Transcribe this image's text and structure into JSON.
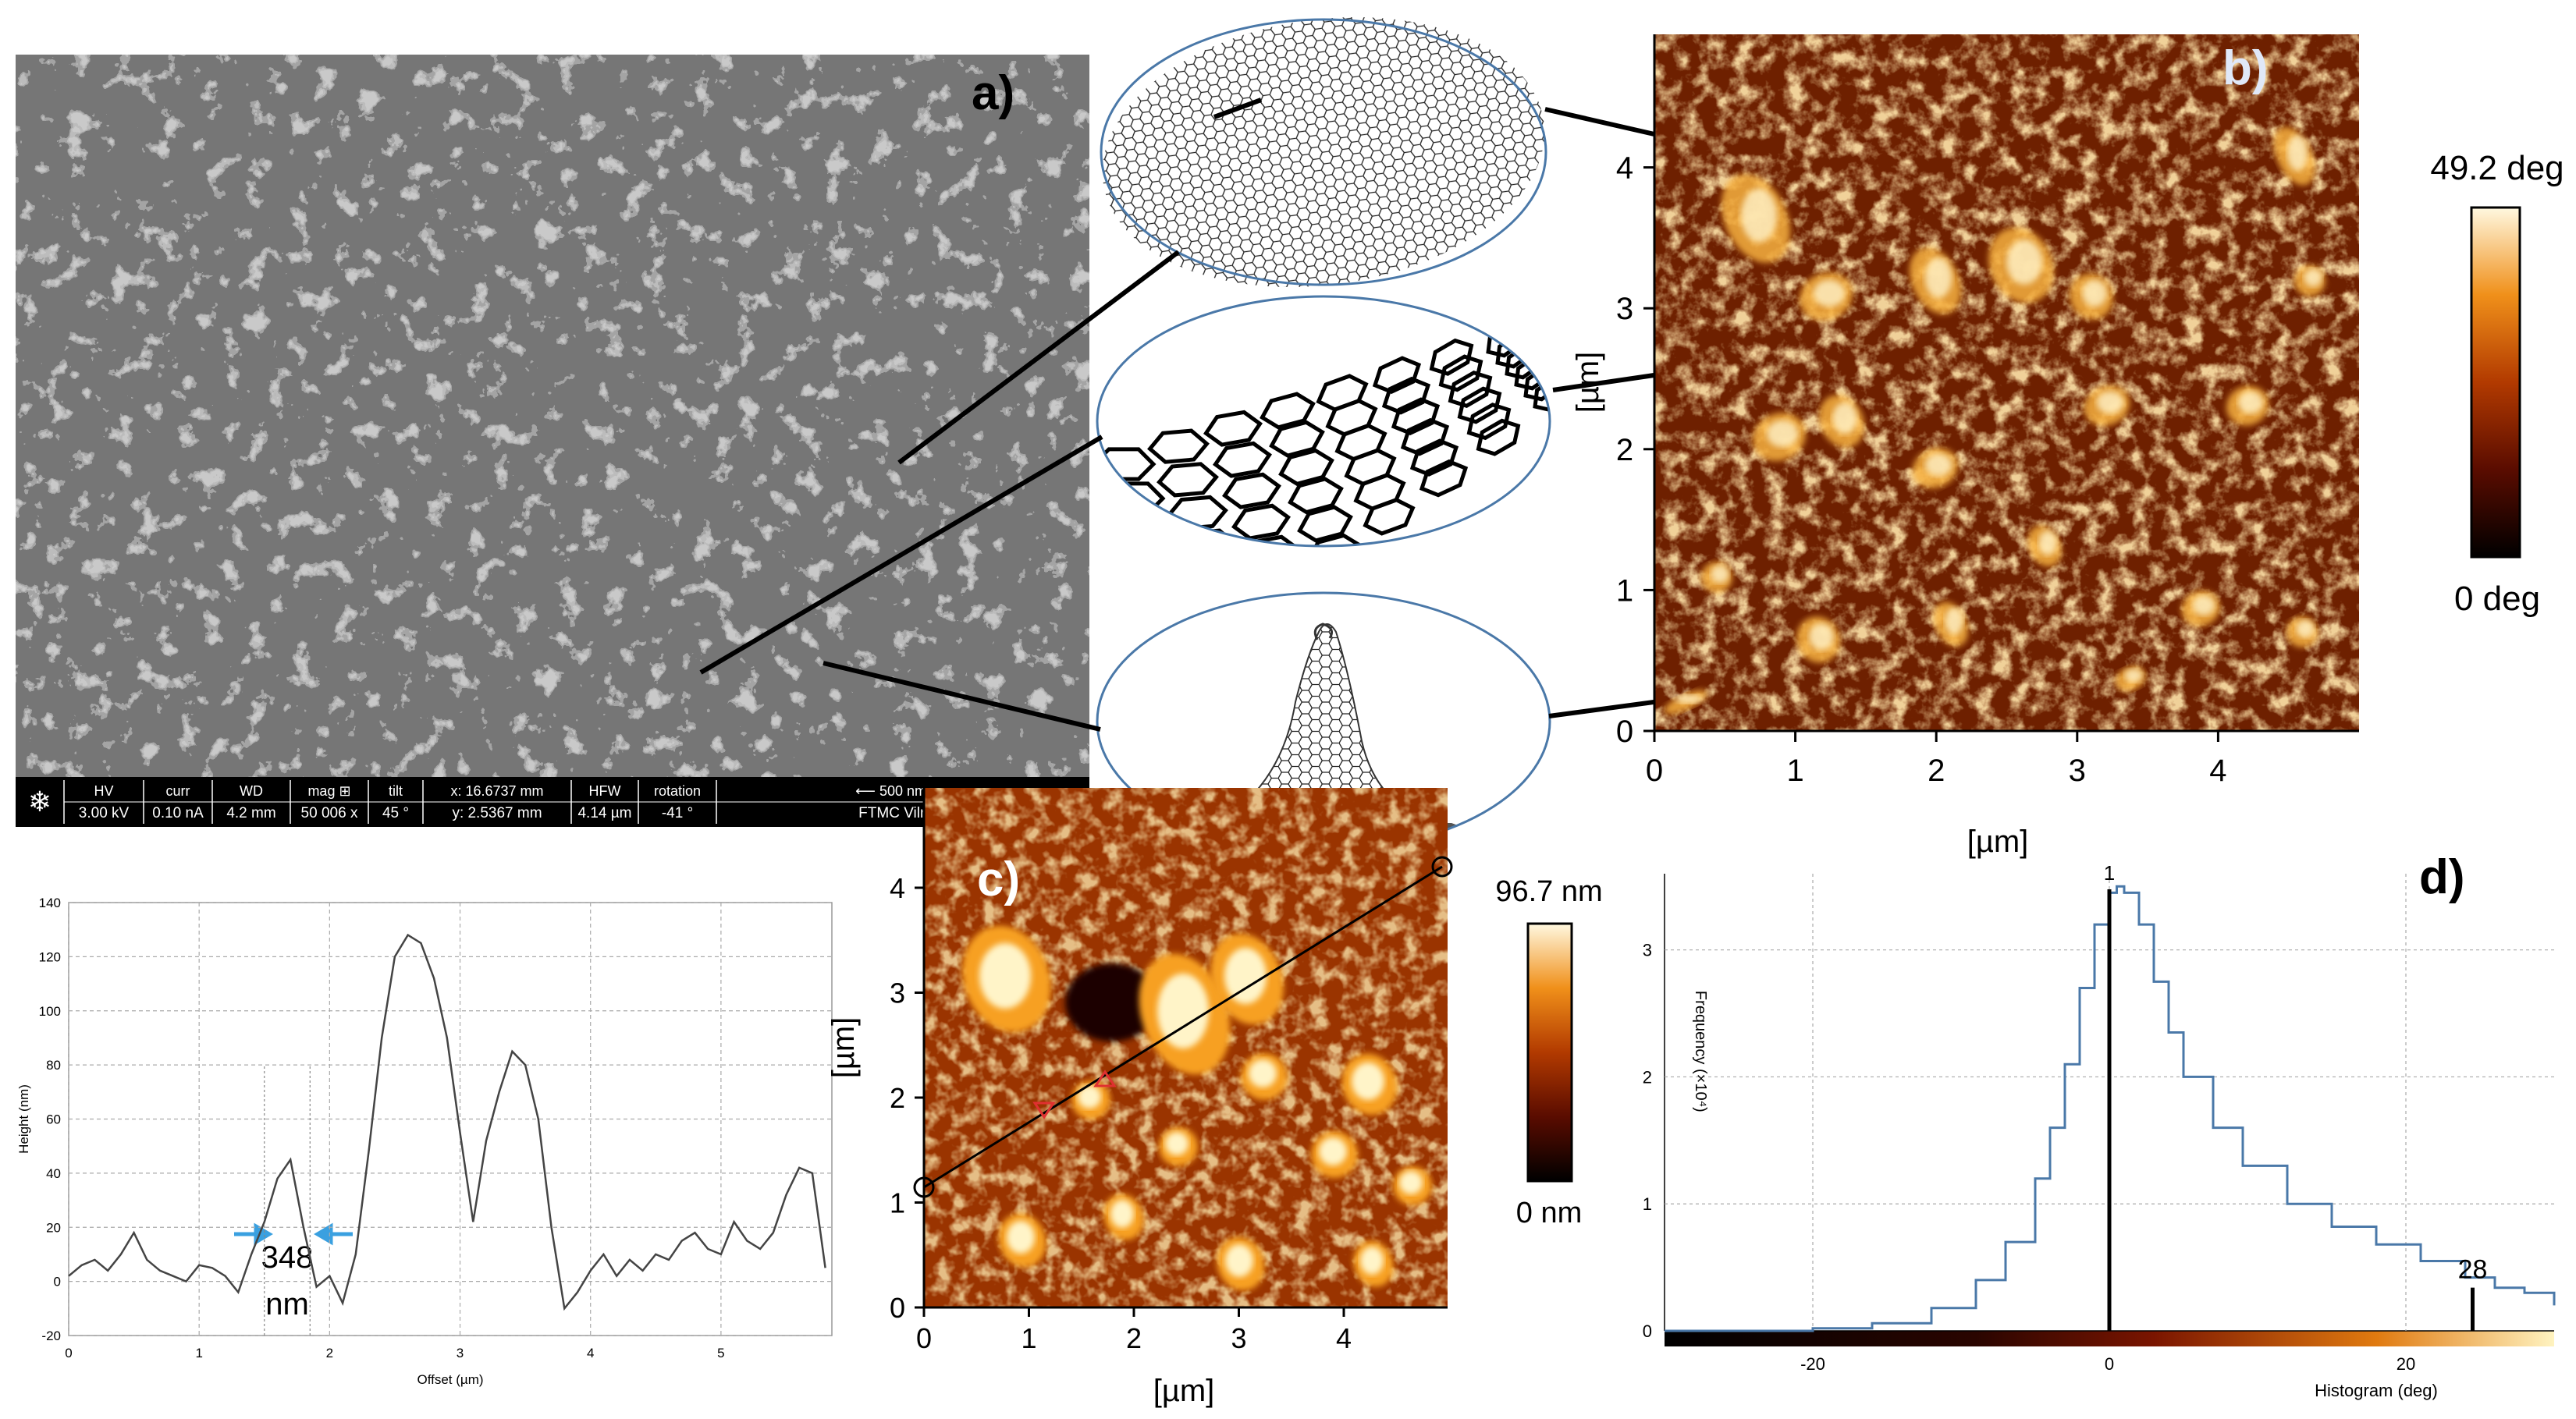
{
  "panels": {
    "a": "a)",
    "b": "b)",
    "c": "c)",
    "d": "d)"
  },
  "sem_databar": {
    "cells": [
      {
        "header": "HV",
        "value": "3.00 kV"
      },
      {
        "header": "curr",
        "value": "0.10 nA"
      },
      {
        "header": "WD",
        "value": "4.2 mm"
      },
      {
        "header": "mag ⊞",
        "value": "50 006 x"
      },
      {
        "header": "tilt",
        "value": "45 °"
      },
      {
        "header": "x: 16.6737 mm",
        "value": "y: 2.5367 mm"
      },
      {
        "header": "HFW",
        "value": "4.14 µm"
      },
      {
        "header": "rotation",
        "value": "-41 °"
      },
      {
        "header": "⟵ 500 nm ⟶",
        "value": "FTMC Vilnius"
      }
    ]
  },
  "afm_phase": {
    "axis_label": "[µm]",
    "ticks": [
      "0",
      "1",
      "2",
      "3",
      "4"
    ],
    "colorbar_max": "49.2 deg",
    "colorbar_min": "0 deg"
  },
  "afm_height": {
    "axis_label": "[µm]",
    "ticks": [
      "0",
      "1",
      "2",
      "3",
      "4"
    ],
    "colorbar_max": "96.7 nm",
    "colorbar_min": "0 nm"
  },
  "colors": {
    "afm_dark": "#2a0800",
    "afm_mid": "#b84a08",
    "afm_bright": "#ffe8a0",
    "histogram_line": "#4a78a8",
    "marker_arrow": "#3aa0e0",
    "cursor_red": "#e03030"
  },
  "chart_data": [
    {
      "type": "line",
      "xlabel": "Offset (µm)",
      "ylabel": "Height (nm)",
      "xlim": [
        0,
        5.85
      ],
      "ylim": [
        -20,
        140
      ],
      "xticks": [
        "0",
        "1",
        "2",
        "3",
        "4",
        "5"
      ],
      "yticks": [
        "-20",
        "0",
        "20",
        "40",
        "60",
        "80",
        "100",
        "120",
        "140"
      ],
      "grid": true,
      "annotation_value": "348",
      "annotation_unit": "nm",
      "x": [
        0,
        0.1,
        0.2,
        0.3,
        0.4,
        0.5,
        0.6,
        0.7,
        0.8,
        0.9,
        1.0,
        1.1,
        1.2,
        1.3,
        1.4,
        1.5,
        1.6,
        1.7,
        1.8,
        1.9,
        2.0,
        2.1,
        2.2,
        2.3,
        2.4,
        2.5,
        2.6,
        2.7,
        2.8,
        2.9,
        3.0,
        3.1,
        3.2,
        3.3,
        3.4,
        3.5,
        3.6,
        3.7,
        3.8,
        3.9,
        4.0,
        4.1,
        4.2,
        4.3,
        4.4,
        4.5,
        4.6,
        4.7,
        4.8,
        4.9,
        5.0,
        5.1,
        5.2,
        5.3,
        5.4,
        5.5,
        5.6,
        5.7,
        5.8
      ],
      "y": [
        2,
        6,
        8,
        4,
        10,
        18,
        8,
        4,
        2,
        0,
        6,
        5,
        2,
        -4,
        10,
        22,
        38,
        45,
        20,
        -2,
        2,
        -8,
        10,
        48,
        90,
        120,
        128,
        125,
        112,
        90,
        55,
        22,
        52,
        70,
        85,
        80,
        60,
        20,
        -10,
        -4,
        4,
        10,
        2,
        8,
        4,
        10,
        8,
        15,
        18,
        12,
        10,
        22,
        15,
        12,
        18,
        32,
        42,
        40,
        5
      ]
    },
    {
      "type": "area",
      "xlabel": "Histogram (deg)",
      "ylabel": "Frequency (×10⁴)",
      "xlim": [
        -30,
        30
      ],
      "ylim": [
        0,
        3.6
      ],
      "xticks": [
        "-20",
        "0",
        "20"
      ],
      "yticks": [
        "0",
        "1",
        "2",
        "3"
      ],
      "grid": true,
      "cursors": [
        {
          "label": "1",
          "x": 0
        },
        {
          "label": "28",
          "x": 24.5
        }
      ],
      "x": [
        -30,
        -25,
        -20,
        -16,
        -12,
        -9,
        -7,
        -5,
        -4,
        -3,
        -2,
        -1,
        0,
        0.5,
        1,
        2,
        3,
        4,
        5,
        7,
        9,
        12,
        15,
        18,
        21,
        24,
        26,
        28,
        30
      ],
      "y": [
        0,
        0,
        0.02,
        0.06,
        0.18,
        0.4,
        0.7,
        1.2,
        1.6,
        2.1,
        2.7,
        3.2,
        3.45,
        3.5,
        3.45,
        3.2,
        2.75,
        2.35,
        2.0,
        1.6,
        1.3,
        1.0,
        0.82,
        0.68,
        0.55,
        0.42,
        0.34,
        0.3,
        0.2
      ]
    }
  ]
}
